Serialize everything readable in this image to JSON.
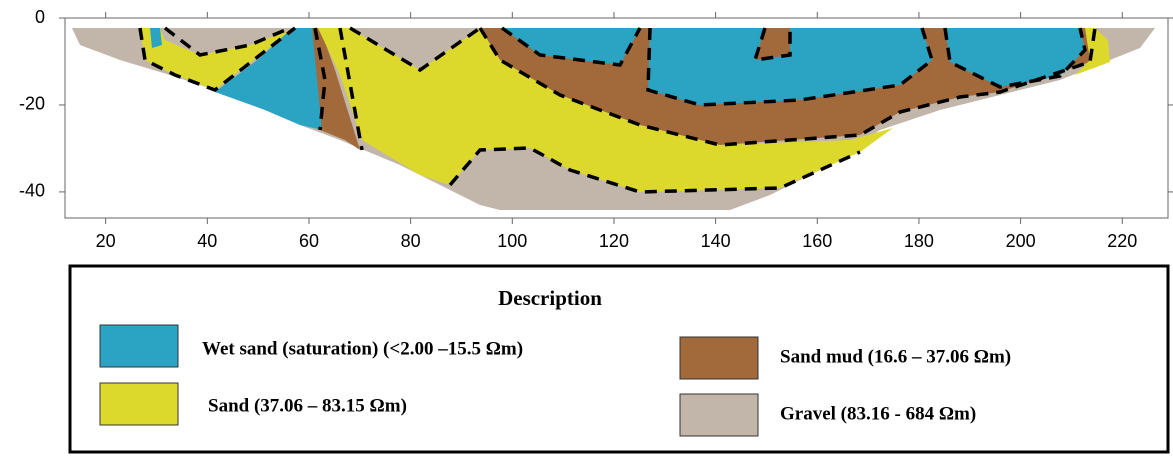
{
  "chart_data": {
    "type": "section",
    "xlim": [
      12,
      229
    ],
    "xticks": [
      20,
      40,
      60,
      80,
      100,
      120,
      140,
      160,
      180,
      200,
      220
    ],
    "ylim": [
      -46,
      0
    ],
    "yticks": [
      0,
      -20,
      -40
    ],
    "legend_title": "Description",
    "series": [
      {
        "name": "Wet sand (saturation) (<2.00 –15.5 Ωm)",
        "color": "#2ba3c2"
      },
      {
        "name": "Sand (37.06 – 83.15 Ωm)",
        "color": "#dcd92c"
      },
      {
        "name": "Sand mud (16.6 – 37.06 Ωm)",
        "color": "#a2693b"
      },
      {
        "name": "Gravel (83.16 - 684 Ωm)",
        "color": "#c2b5aa"
      }
    ]
  }
}
